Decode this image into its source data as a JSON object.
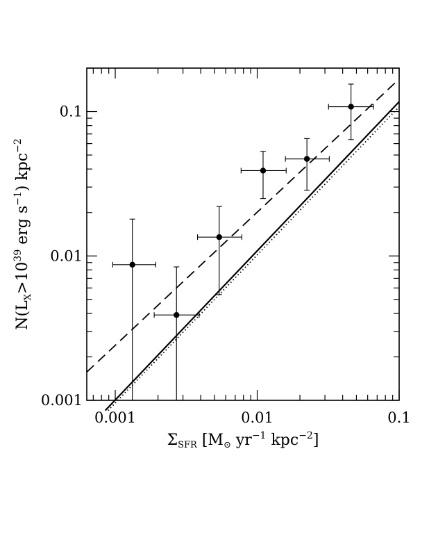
{
  "chart_data": {
    "type": "scatter",
    "x_scale": "log",
    "y_scale": "log",
    "xlim": [
      0.00063,
      0.1
    ],
    "ylim": [
      0.001,
      0.2
    ],
    "xlabel": {
      "sigma": "Σ",
      "sigma_sub": "SFR",
      "open": " [M",
      "sun": "⊙",
      "mid": " yr",
      "exp1": "−1",
      "unit": " kpc",
      "exp2": "−2",
      "close": "]"
    },
    "ylabel": {
      "pre": "N(L",
      "sub": "X",
      "gt": ">10",
      "exp": "39",
      "unit": " erg s",
      "exp2": "−1",
      "close": ") kpc",
      "exp3": "−2"
    },
    "xticks": [
      {
        "value": 0.001,
        "label": "0.001"
      },
      {
        "value": 0.01,
        "label": "0.01"
      },
      {
        "value": 0.1,
        "label": "0.1"
      }
    ],
    "yticks": [
      {
        "value": 0.001,
        "label": "0.001"
      },
      {
        "value": 0.01,
        "label": "0.01"
      },
      {
        "value": 0.1,
        "label": "0.1"
      }
    ],
    "points": [
      {
        "x": 0.00132,
        "y": 0.0087,
        "x_lo": 0.00096,
        "x_hi": 0.00193,
        "y_lo": 0.001,
        "y_hi": 0.018
      },
      {
        "x": 0.0027,
        "y": 0.0039,
        "x_lo": 0.00188,
        "x_hi": 0.0039,
        "y_lo": 0.001,
        "y_hi": 0.0084
      },
      {
        "x": 0.0054,
        "y": 0.0135,
        "x_lo": 0.0038,
        "x_hi": 0.0078,
        "y_lo": 0.0054,
        "y_hi": 0.022
      },
      {
        "x": 0.011,
        "y": 0.039,
        "x_lo": 0.0077,
        "x_hi": 0.016,
        "y_lo": 0.025,
        "y_hi": 0.053
      },
      {
        "x": 0.0224,
        "y": 0.047,
        "x_lo": 0.0158,
        "x_hi": 0.0322,
        "y_lo": 0.0285,
        "y_hi": 0.065
      },
      {
        "x": 0.0458,
        "y": 0.108,
        "x_lo": 0.0318,
        "x_hi": 0.066,
        "y_lo": 0.064,
        "y_hi": 0.155
      }
    ],
    "lines": [
      {
        "style": "dashed",
        "x": [
          0.00063,
          0.1
        ],
        "y": [
          0.00157,
          0.168
        ]
      },
      {
        "style": "solid",
        "x": [
          0.00085,
          0.1
        ],
        "y": [
          0.00085,
          0.117
        ]
      },
      {
        "style": "dotted",
        "x": [
          0.00089,
          0.1
        ],
        "y": [
          0.00085,
          0.108
        ]
      }
    ]
  }
}
